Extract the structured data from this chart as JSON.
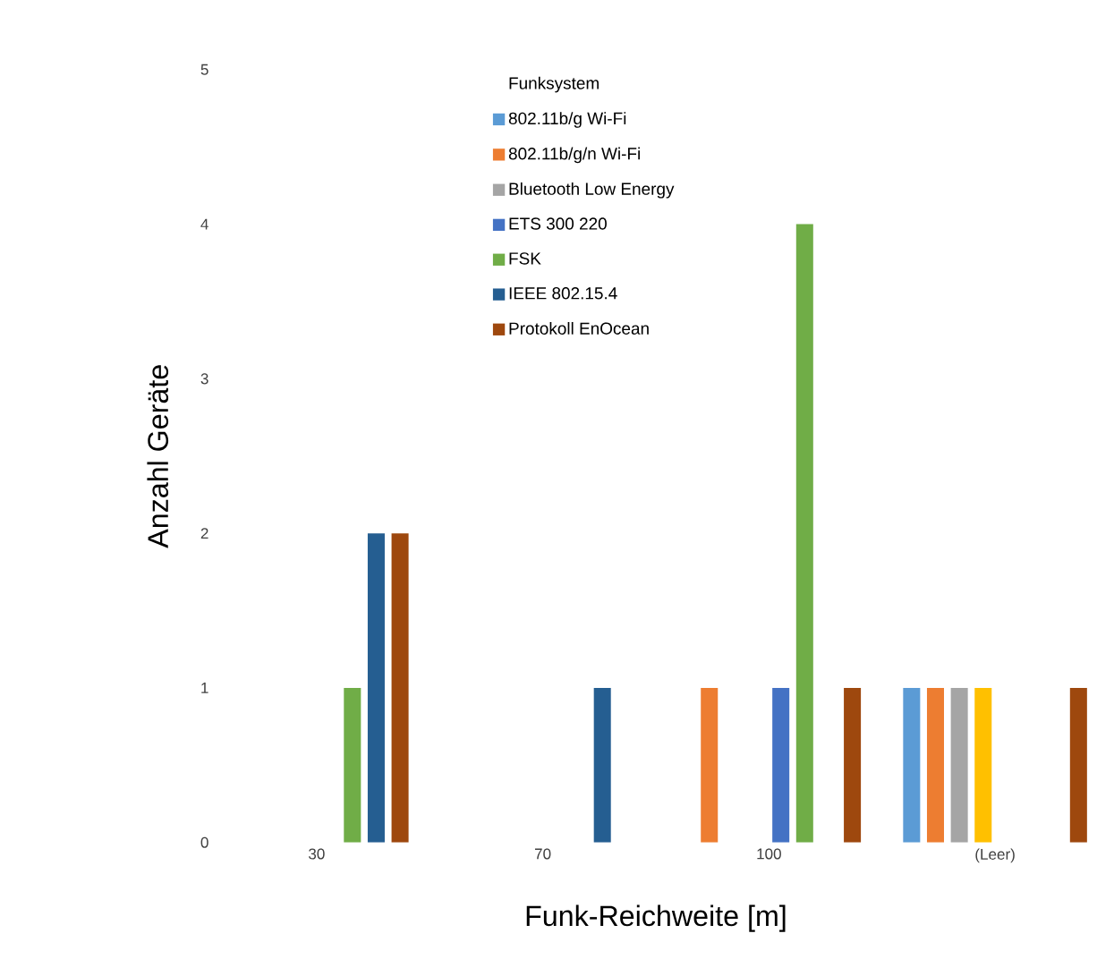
{
  "chart_data": {
    "type": "bar",
    "xlabel": "Funk-Reichweite [m]",
    "ylabel": "Anzahl Geräte",
    "legend_title": "Funksystem",
    "legend": "top",
    "grid": false,
    "categories": [
      "30",
      "70",
      "100",
      "(Leer)"
    ],
    "ylim": [
      0,
      5
    ],
    "yticks": [
      0,
      1,
      2,
      3,
      4,
      5
    ],
    "series": [
      {
        "name": "802.11b/g Wi-Fi",
        "color": "#5b9bd5",
        "values": [
          null,
          null,
          null,
          1
        ]
      },
      {
        "name": "802.11b/g/n Wi-Fi",
        "color": "#ed7d31",
        "values": [
          null,
          null,
          1,
          1
        ]
      },
      {
        "name": "Bluetooth Low Energy",
        "color": "#a5a5a5",
        "values": [
          null,
          null,
          null,
          1
        ]
      },
      {
        "color": "#ffc000",
        "values": [
          null,
          null,
          null,
          1
        ]
      },
      {
        "name": "ETS 300 220",
        "color": "#4472c4",
        "values": [
          null,
          null,
          1,
          null
        ]
      },
      {
        "name": "FSK",
        "color": "#70ad47",
        "values": [
          1,
          null,
          4,
          null
        ]
      },
      {
        "name": "IEEE 802.15.4",
        "color": "#255e91",
        "values": [
          2,
          1,
          null,
          null
        ]
      },
      {
        "name": "Protokoll EnOcean",
        "color": "#9e480e",
        "values": [
          2,
          null,
          1,
          1
        ]
      }
    ]
  }
}
